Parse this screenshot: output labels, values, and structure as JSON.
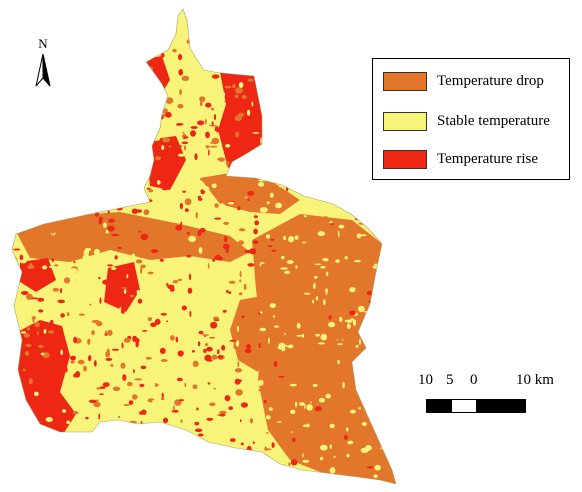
{
  "map": {
    "colors": {
      "drop": "#E2762A",
      "stable": "#F8F47A",
      "rise": "#EE2614"
    }
  },
  "north_arrow": {
    "letter": "N"
  },
  "legend": {
    "items": [
      {
        "label": "Temperature drop",
        "color": "#E2762A"
      },
      {
        "label": "Stable temperature",
        "color": "#F8F47A"
      },
      {
        "label": "Temperature rise",
        "color": "#EE2614"
      }
    ]
  },
  "scale_bar": {
    "labels": [
      "10",
      "5",
      "0",
      "10 km"
    ]
  }
}
